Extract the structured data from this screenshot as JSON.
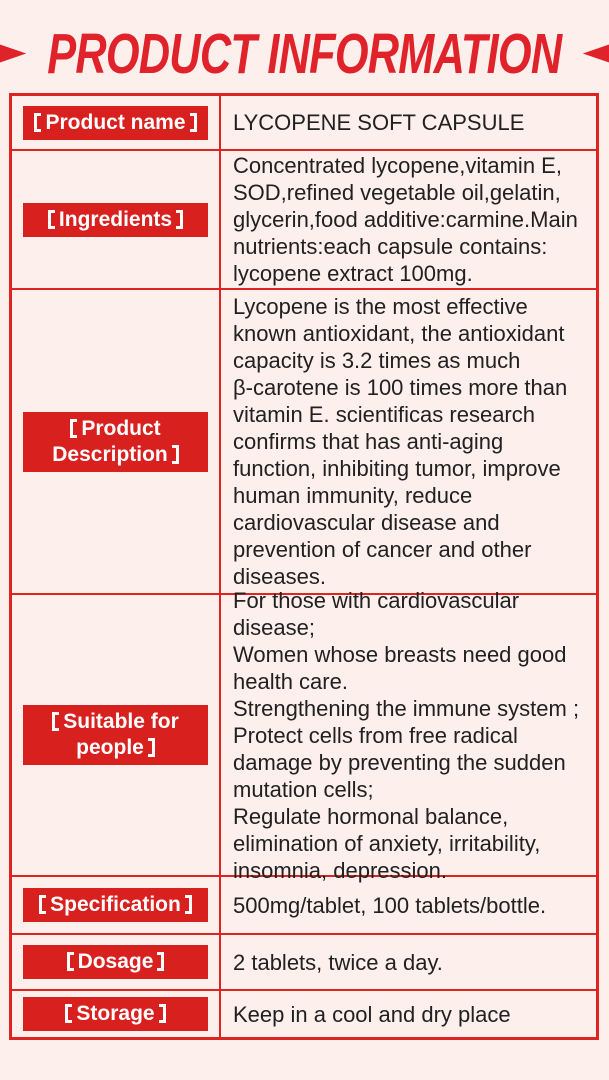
{
  "page": {
    "title": "PRODUCT INFORMATION",
    "colors": {
      "accent_red": "#dd2423",
      "badge_red": "#d8201f",
      "background_pink": "#fcefec",
      "text_black": "#212121",
      "badge_text_white": "#ffffff"
    },
    "icons": {
      "left_decoration": "arrow-right-icon",
      "right_decoration": "arrow-left-icon"
    }
  },
  "table": {
    "rows": [
      {
        "label": "【Product name】",
        "label_text": "Product name",
        "value": "LYCOPENE SOFT CAPSULE"
      },
      {
        "label": "【Ingredients】",
        "label_text": "Ingredients",
        "value": "Concentrated lycopene,vitamin E,\nSOD,refined vegetable oil,gelatin,\nglycerin,food additive:carmine.Main\nnutrients:each capsule contains:\nlycopene extract 100mg."
      },
      {
        "label": "【Product Description】",
        "label_text": "Product\nDescription",
        "value": "Lycopene is the most effective\nknown antioxidant, the antioxidant\ncapacity is 3.2 times as much\nβ-carotene is 100 times more than\nvitamin E. scientificas research\nconfirms that has anti-aging\nfunction, inhibiting tumor, improve\nhuman immunity, reduce\ncardiovascular disease and\nprevention of cancer and other\ndiseases."
      },
      {
        "label": "【Suitable for people】",
        "label_text": "Suitable for\npeople",
        "value": "For those with cardiovascular\ndisease;\nWomen whose breasts need good\nhealth care.\nStrengthening the immune system ;\nProtect cells from free radical\ndamage by preventing the sudden\nmutation cells;\nRegulate hormonal balance,\nelimination of anxiety, irritability,\ninsomnia, depression."
      },
      {
        "label": "【Specification】",
        "label_text": "Specification",
        "value": "500mg/tablet, 100 tablets/bottle."
      },
      {
        "label": "【Dosage】",
        "label_text": "Dosage",
        "value": "2 tablets, twice a day."
      },
      {
        "label": "【Storage】",
        "label_text": "Storage",
        "value": "Keep in a cool and dry place"
      }
    ]
  }
}
